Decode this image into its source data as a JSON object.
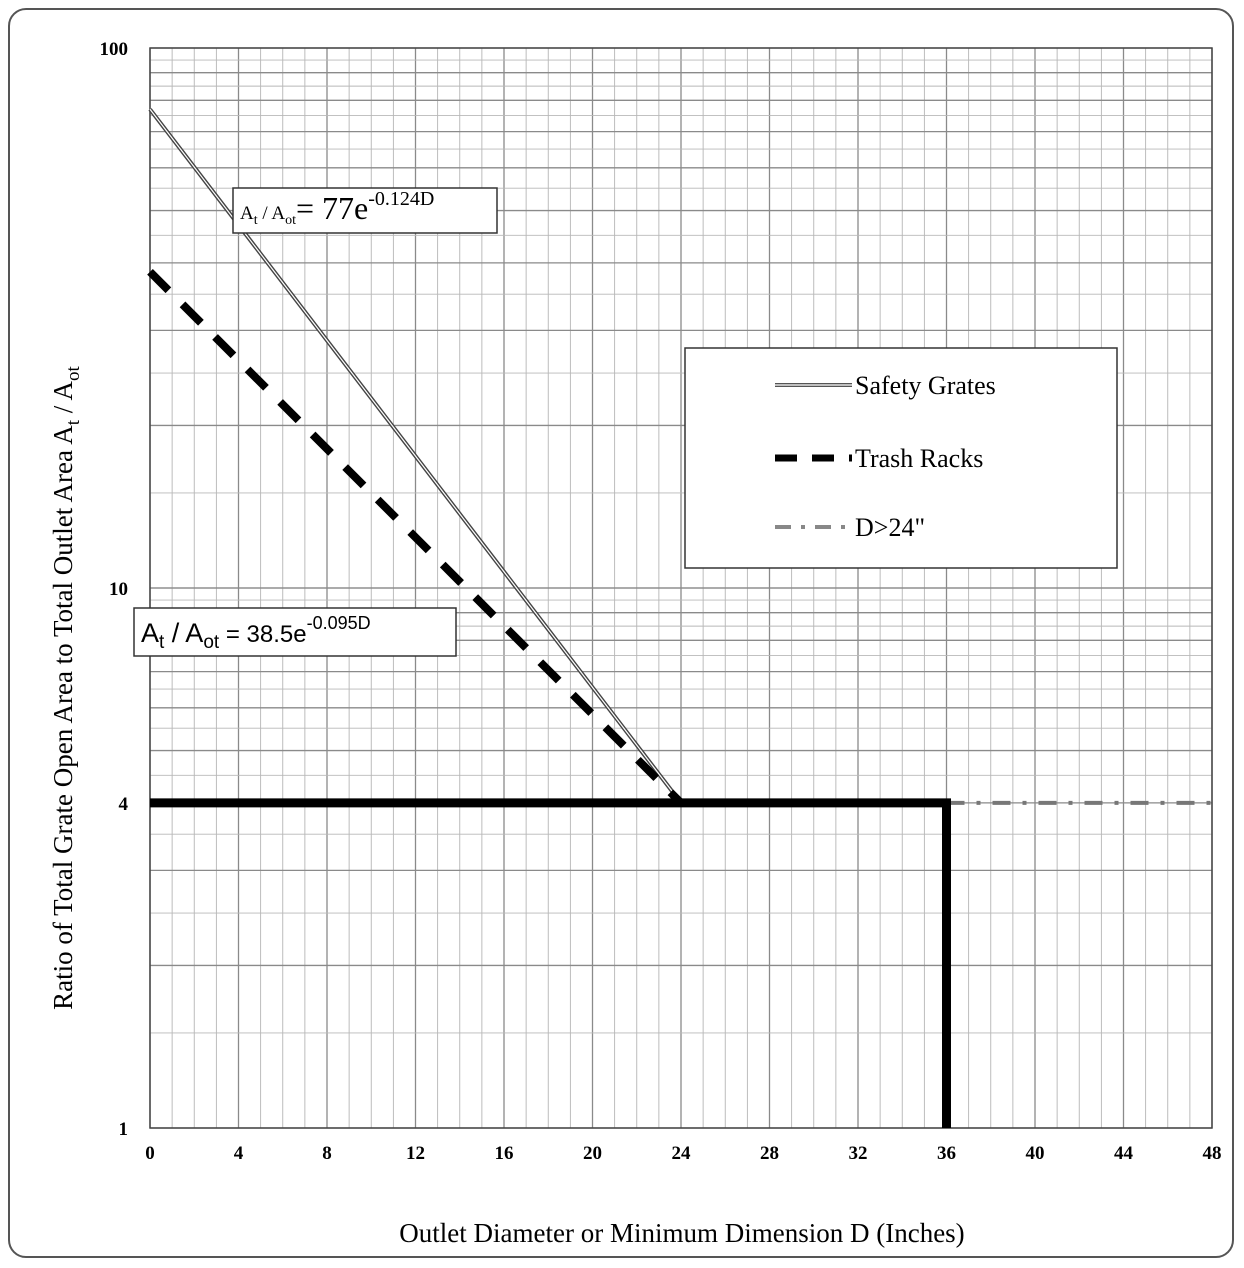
{
  "chart_data": {
    "type": "line",
    "xlabel": "Outlet Diameter or Minimum Dimension D (Inches)",
    "ylabel": "Ratio of Total Grate Open Area to Total Outlet Area At / Aot",
    "ylabel_parts": {
      "main": "Ratio of Total Grate Open Area to Total Outlet Area A",
      "sub1": "t",
      "mid": " / A",
      "sub2": "ot"
    },
    "xlim": [
      0,
      48
    ],
    "ylim": [
      1,
      100
    ],
    "y_scale": "log",
    "x_ticks": [
      "0",
      "4",
      "8",
      "12",
      "16",
      "20",
      "24",
      "28",
      "32",
      "36",
      "40",
      "44",
      "48"
    ],
    "y_ticks": [
      {
        "value": 1,
        "label": "1"
      },
      {
        "value": 4,
        "label": "4"
      },
      {
        "value": 10,
        "label": "10"
      },
      {
        "value": 100,
        "label": "100"
      }
    ],
    "grid": true,
    "legend_position": "right",
    "series": [
      {
        "name": "Safety Grates",
        "style": "solid-double",
        "color": "#444444",
        "points": [
          [
            0,
            77
          ],
          [
            24,
            4
          ]
        ]
      },
      {
        "name": "Trash Racks",
        "style": "dashed",
        "color": "#000000",
        "points": [
          [
            0,
            38.5
          ],
          [
            24,
            4
          ]
        ]
      },
      {
        "name": "D>24\"",
        "style": "dash-dot",
        "color": "#777777",
        "points": [
          [
            36,
            4
          ],
          [
            48,
            4
          ]
        ]
      },
      {
        "name": "",
        "style": "thick",
        "color": "#000000",
        "points": [
          [
            0,
            4
          ],
          [
            36,
            4
          ],
          [
            36,
            1
          ]
        ]
      }
    ],
    "annotations": [
      {
        "text": "At / Aot = 77e-0.124D",
        "parts": {
          "a": "A",
          "s1": "t",
          "m": " / A",
          "s2": "ot",
          "eq": "= 77e",
          "exp": "-0.124D"
        }
      },
      {
        "text": "At / Aot = 38.5e-0.095D",
        "parts": {
          "a": "A",
          "s1": "t",
          "m": " / A",
          "s2": "ot",
          "eq": " = 38.5e",
          "exp": "-0.095D"
        }
      }
    ]
  }
}
